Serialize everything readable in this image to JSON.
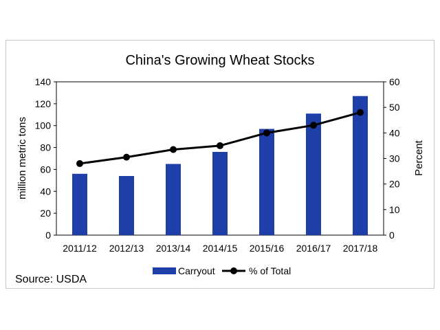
{
  "source": "Source: USDA",
  "chart_data": {
    "type": "bar+line",
    "title": "China's Growing Wheat Stocks",
    "categories": [
      "2011/12",
      "2012/13",
      "2013/14",
      "2014/15",
      "2015/16",
      "2016/17",
      "2017/18"
    ],
    "series": [
      {
        "name": "Carryout",
        "type": "bar",
        "axis": "left",
        "color": "#1f3fa8",
        "values": [
          56,
          54,
          65,
          76,
          97,
          111,
          127
        ]
      },
      {
        "name": "% of Total",
        "type": "line",
        "axis": "right",
        "color": "#000000",
        "values": [
          28,
          30.5,
          33.5,
          35,
          40,
          43,
          48
        ]
      }
    ],
    "ylabel": "million metric tons",
    "y2label": "Percent",
    "ylim": [
      0,
      140
    ],
    "y2lim": [
      0,
      60
    ],
    "yticks": [
      0,
      20,
      40,
      60,
      80,
      100,
      120,
      140
    ],
    "y2ticks": [
      0,
      10,
      20,
      30,
      40,
      50,
      60
    ],
    "grid": false,
    "legend_position": "bottom"
  }
}
